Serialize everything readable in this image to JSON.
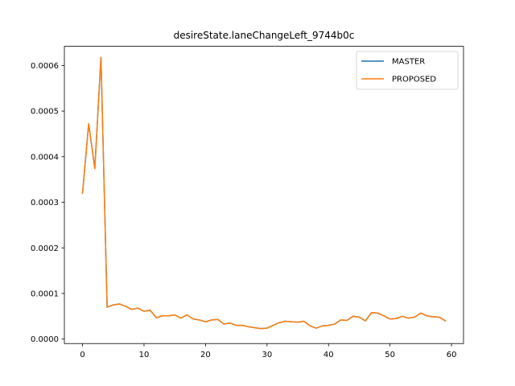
{
  "chart_data": {
    "type": "line",
    "title": "desireState.laneChangeLeft_9744b0c",
    "xlabel": "",
    "ylabel": "",
    "xlim": [
      -2.95,
      61.95
    ],
    "ylim": [
      -9.8e-06,
      0.000642
    ],
    "xticks": [
      0,
      10,
      20,
      30,
      40,
      50,
      60
    ],
    "yticks": [
      0.0,
      0.0001,
      0.0002,
      0.0003,
      0.0004,
      0.0005,
      0.0006
    ],
    "ytick_labels": [
      "0.0000",
      "0.0001",
      "0.0002",
      "0.0003",
      "0.0004",
      "0.0005",
      "0.0006"
    ],
    "legend_position": "top-right",
    "grid": false,
    "x": [
      0,
      1,
      2,
      3,
      4,
      5,
      6,
      7,
      8,
      9,
      10,
      11,
      12,
      13,
      14,
      15,
      16,
      17,
      18,
      19,
      20,
      21,
      22,
      23,
      24,
      25,
      26,
      27,
      28,
      29,
      30,
      31,
      32,
      33,
      34,
      35,
      36,
      37,
      38,
      39,
      40,
      41,
      42,
      43,
      44,
      45,
      46,
      47,
      48,
      49,
      50,
      51,
      52,
      53,
      54,
      55,
      56,
      57,
      58,
      59
    ],
    "series": [
      {
        "name": "MASTER",
        "color": "#1f77b4",
        "values": [
          0.00032,
          0.000472,
          0.000374,
          0.000618,
          7e-05,
          7.5e-05,
          7.7e-05,
          7.2e-05,
          6.5e-05,
          6.8e-05,
          6.1e-05,
          6.3e-05,
          4.7e-05,
          5.1e-05,
          5.1e-05,
          5.3e-05,
          4.6e-05,
          5.3e-05,
          4.4e-05,
          4.2e-05,
          3.8e-05,
          4.2e-05,
          4.3e-05,
          3.3e-05,
          3.5e-05,
          3e-05,
          3e-05,
          2.7e-05,
          2.5e-05,
          2.3e-05,
          2.4e-05,
          3e-05,
          3.6e-05,
          3.9e-05,
          3.8e-05,
          3.7e-05,
          3.9e-05,
          2.9e-05,
          2.4e-05,
          2.9e-05,
          3e-05,
          3.3e-05,
          4.2e-05,
          4.1e-05,
          5e-05,
          4.8e-05,
          4e-05,
          5.8e-05,
          5.7e-05,
          5.1e-05,
          4.4e-05,
          4.5e-05,
          5e-05,
          4.6e-05,
          4.8e-05,
          5.7e-05,
          5.1e-05,
          4.9e-05,
          4.8e-05,
          4e-05
        ]
      },
      {
        "name": "PROPOSED",
        "color": "#ff7f0e",
        "values": [
          0.00032,
          0.000472,
          0.000374,
          0.000618,
          7e-05,
          7.5e-05,
          7.7e-05,
          7.2e-05,
          6.5e-05,
          6.8e-05,
          6.1e-05,
          6.3e-05,
          4.7e-05,
          5.1e-05,
          5.1e-05,
          5.3e-05,
          4.6e-05,
          5.3e-05,
          4.4e-05,
          4.2e-05,
          3.8e-05,
          4.2e-05,
          4.3e-05,
          3.3e-05,
          3.5e-05,
          3e-05,
          3e-05,
          2.7e-05,
          2.5e-05,
          2.3e-05,
          2.4e-05,
          3e-05,
          3.6e-05,
          3.9e-05,
          3.8e-05,
          3.7e-05,
          3.9e-05,
          2.9e-05,
          2.4e-05,
          2.9e-05,
          3e-05,
          3.3e-05,
          4.2e-05,
          4.1e-05,
          5e-05,
          4.8e-05,
          4e-05,
          5.8e-05,
          5.7e-05,
          5.1e-05,
          4.4e-05,
          4.5e-05,
          5e-05,
          4.6e-05,
          4.8e-05,
          5.7e-05,
          5.1e-05,
          4.9e-05,
          4.8e-05,
          4e-05
        ]
      }
    ]
  }
}
